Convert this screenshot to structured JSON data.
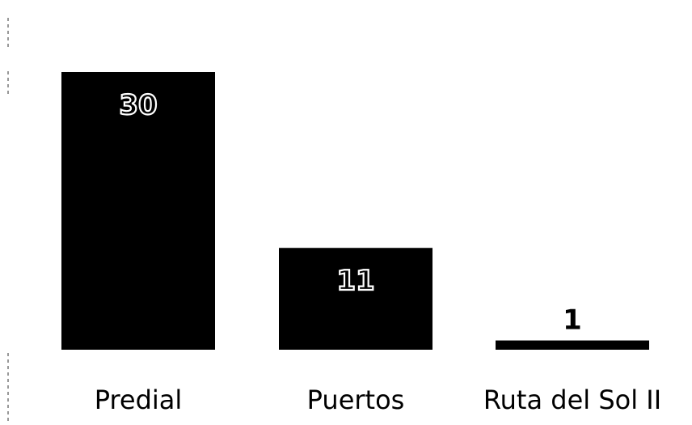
{
  "chart_data": {
    "type": "bar",
    "categories": [
      "Predial",
      "Puertos",
      "Ruta del Sol II"
    ],
    "values": [
      30,
      11,
      1
    ],
    "ylim": [
      0,
      30
    ],
    "title": "",
    "xlabel": "",
    "ylabel": "",
    "grid": false,
    "bar_color": "#000000",
    "value_label_color": "#000000",
    "value_label_outline_color": "#ffffff"
  }
}
